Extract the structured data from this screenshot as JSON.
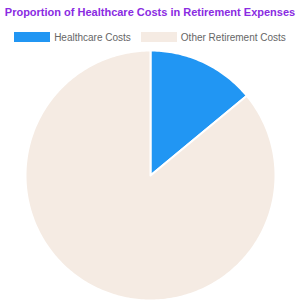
{
  "chart_data": {
    "type": "pie",
    "title": "Proportion of Healthcare Costs in Retirement Expenses",
    "categories": [
      "Healthcare Costs",
      "Other Retirement Costs"
    ],
    "values": [
      14,
      86
    ],
    "colors": [
      "#2196f3",
      "#f5ebe3"
    ],
    "legend": "top",
    "data_labels": false
  }
}
